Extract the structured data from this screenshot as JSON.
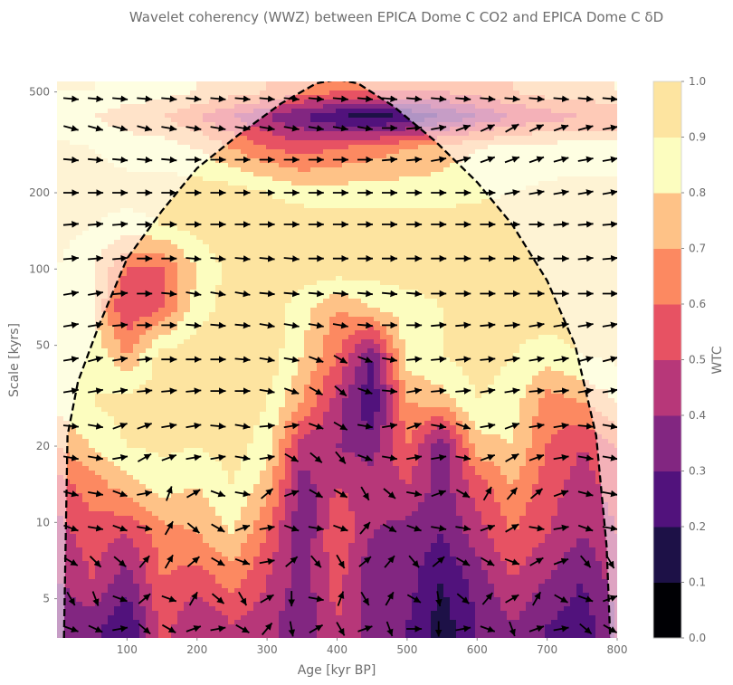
{
  "chart_data": {
    "type": "heatmap",
    "title": "Wavelet coherency (WWZ) between EPICA Dome C CO2 and EPICA Dome C δD",
    "xlabel": "Age [kyr BP]",
    "ylabel": "Scale [kyrs]",
    "xlim": [
      0,
      800
    ],
    "ylim": [
      3.5,
      550
    ],
    "y_scale": "log",
    "x_ticks": [
      100,
      200,
      300,
      400,
      500,
      600,
      700,
      800
    ],
    "y_ticks": [
      5,
      10,
      20,
      50,
      100,
      200,
      500
    ],
    "colorbar": {
      "label": "WTC",
      "colormap": "magma",
      "ticks": [
        "0.0",
        "0.1",
        "0.2",
        "0.3",
        "0.4",
        "0.5",
        "0.6",
        "0.7",
        "0.8",
        "0.9",
        "1.0"
      ],
      "levels": [
        0.0,
        0.1,
        0.2,
        0.3,
        0.4,
        0.5,
        0.6,
        0.7,
        0.8,
        0.9,
        1.0
      ],
      "colors": [
        "#000004",
        "#1d1147",
        "#51127c",
        "#822681",
        "#b73779",
        "#e75263",
        "#fc8961",
        "#fec287",
        "#fcfdbf",
        "#fde4a0"
      ]
    },
    "cone_of_influence": {
      "x": [
        10,
        15,
        30,
        60,
        100,
        150,
        200,
        260,
        320,
        370,
        400,
        430,
        480,
        540,
        600,
        650,
        700,
        740,
        770,
        785,
        790
      ],
      "y": [
        3.5,
        22,
        36,
        60,
        110,
        170,
        250,
        340,
        450,
        540,
        560,
        540,
        440,
        320,
        220,
        150,
        90,
        50,
        22,
        8,
        3.5
      ]
    },
    "coherency_grid": {
      "x": [
        0,
        50,
        100,
        150,
        200,
        250,
        300,
        350,
        400,
        450,
        500,
        550,
        600,
        650,
        700,
        750,
        800
      ],
      "scales": [
        4,
        6,
        9,
        14,
        20,
        30,
        45,
        70,
        100,
        150,
        200,
        300,
        400,
        500
      ],
      "z": [
        [
          0.3,
          0.35,
          0.2,
          0.55,
          0.4,
          0.5,
          0.45,
          0.3,
          0.5,
          0.35,
          0.3,
          0.15,
          0.3,
          0.4,
          0.3,
          0.25,
          0.4
        ],
        [
          0.4,
          0.5,
          0.35,
          0.6,
          0.55,
          0.65,
          0.5,
          0.35,
          0.55,
          0.3,
          0.35,
          0.2,
          0.35,
          0.5,
          0.4,
          0.3,
          0.45
        ],
        [
          0.45,
          0.55,
          0.5,
          0.65,
          0.7,
          0.8,
          0.6,
          0.3,
          0.6,
          0.4,
          0.35,
          0.3,
          0.45,
          0.6,
          0.5,
          0.4,
          0.5
        ],
        [
          0.55,
          0.65,
          0.75,
          0.85,
          0.8,
          0.9,
          0.75,
          0.35,
          0.5,
          0.45,
          0.5,
          0.35,
          0.55,
          0.7,
          0.55,
          0.45,
          0.55
        ],
        [
          0.7,
          0.8,
          0.9,
          0.92,
          0.9,
          0.95,
          0.85,
          0.45,
          0.4,
          0.35,
          0.6,
          0.3,
          0.75,
          0.8,
          0.6,
          0.5,
          0.6
        ],
        [
          0.85,
          0.9,
          0.95,
          0.95,
          0.95,
          0.97,
          0.9,
          0.7,
          0.45,
          0.2,
          0.7,
          0.75,
          0.9,
          0.85,
          0.65,
          0.7,
          0.8
        ],
        [
          0.9,
          0.9,
          0.7,
          0.95,
          0.97,
          0.97,
          0.97,
          0.8,
          0.6,
          0.3,
          0.85,
          0.9,
          0.95,
          0.9,
          0.85,
          0.9,
          0.92
        ],
        [
          0.9,
          0.8,
          0.5,
          0.6,
          0.85,
          0.95,
          0.95,
          0.85,
          0.7,
          0.8,
          0.85,
          0.9,
          0.95,
          0.95,
          0.95,
          0.95,
          0.95
        ],
        [
          0.9,
          0.8,
          0.6,
          0.6,
          0.8,
          0.95,
          0.96,
          0.96,
          0.96,
          0.95,
          0.95,
          0.95,
          0.95,
          0.95,
          0.95,
          0.95,
          0.95
        ],
        [
          0.95,
          0.9,
          0.85,
          0.9,
          0.95,
          0.96,
          0.97,
          0.97,
          0.97,
          0.96,
          0.96,
          0.96,
          0.95,
          0.95,
          0.95,
          0.95,
          0.95
        ],
        [
          0.95,
          0.95,
          0.95,
          0.95,
          0.95,
          0.95,
          0.9,
          0.85,
          0.85,
          0.85,
          0.85,
          0.85,
          0.88,
          0.9,
          0.92,
          0.93,
          0.93
        ],
        [
          0.92,
          0.9,
          0.85,
          0.85,
          0.8,
          0.7,
          0.6,
          0.55,
          0.6,
          0.65,
          0.7,
          0.75,
          0.8,
          0.85,
          0.85,
          0.85,
          0.85
        ],
        [
          0.85,
          0.8,
          0.75,
          0.7,
          0.6,
          0.5,
          0.4,
          0.3,
          0.2,
          0.15,
          0.2,
          0.3,
          0.4,
          0.5,
          0.55,
          0.6,
          0.6
        ],
        [
          0.9,
          0.9,
          0.85,
          0.85,
          0.8,
          0.75,
          0.7,
          0.65,
          0.6,
          0.6,
          0.6,
          0.6,
          0.65,
          0.7,
          0.75,
          0.75,
          0.8
        ]
      ]
    },
    "phase_arrows": {
      "x": [
        20,
        55,
        90,
        125,
        160,
        195,
        230,
        265,
        300,
        335,
        370,
        405,
        440,
        475,
        510,
        545,
        580,
        615,
        650,
        685,
        720,
        755,
        790
      ],
      "scales": [
        3.8,
        5,
        7,
        9.5,
        13,
        18,
        24,
        33,
        44,
        60,
        80,
        110,
        150,
        200,
        270,
        360,
        470
      ],
      "angle_deg": [
        [
          -20,
          -25,
          10,
          -40,
          -30,
          20,
          10,
          -30,
          50,
          -80,
          30,
          -60,
          20,
          -70,
          0,
          -90,
          10,
          -20,
          -70,
          20,
          10,
          -40,
          -30
        ],
        [
          -60,
          -70,
          -20,
          40,
          -20,
          60,
          -40,
          -60,
          30,
          -90,
          -10,
          70,
          -60,
          60,
          -30,
          -80,
          -40,
          50,
          30,
          60,
          -30,
          -20,
          20
        ],
        [
          -30,
          -45,
          -40,
          50,
          60,
          40,
          -30,
          -20,
          10,
          40,
          -50,
          -60,
          40,
          50,
          -50,
          40,
          -30,
          -30,
          -20,
          30,
          20,
          -50,
          -60
        ],
        [
          -20,
          -10,
          -20,
          -10,
          60,
          -40,
          -30,
          20,
          10,
          -20,
          -10,
          -20,
          50,
          -30,
          -20,
          -10,
          -10,
          20,
          30,
          -10,
          10,
          -20,
          -10
        ],
        [
          -15,
          -10,
          -20,
          10,
          70,
          30,
          -20,
          -10,
          40,
          20,
          -30,
          -30,
          -60,
          -40,
          -10,
          20,
          -30,
          60,
          50,
          40,
          20,
          -15,
          -10
        ],
        [
          -10,
          -10,
          10,
          30,
          20,
          10,
          10,
          -10,
          10,
          -30,
          -40,
          -50,
          -20,
          -10,
          10,
          10,
          -10,
          20,
          30,
          20,
          10,
          -10,
          -10
        ],
        [
          -5,
          -10,
          20,
          20,
          10,
          10,
          -5,
          -10,
          5,
          10,
          -20,
          -30,
          -10,
          10,
          20,
          -10,
          -20,
          10,
          20,
          10,
          10,
          -5,
          -10
        ],
        [
          10,
          10,
          10,
          5,
          5,
          5,
          0,
          0,
          -10,
          -20,
          -30,
          -40,
          -20,
          -5,
          10,
          5,
          5,
          10,
          10,
          5,
          5,
          10,
          10
        ],
        [
          10,
          15,
          10,
          5,
          0,
          0,
          0,
          -5,
          -10,
          -10,
          -20,
          -30,
          -20,
          -10,
          5,
          5,
          5,
          5,
          10,
          10,
          10,
          15,
          15
        ],
        [
          10,
          10,
          5,
          0,
          0,
          -5,
          -5,
          -5,
          -10,
          -10,
          -10,
          -10,
          -5,
          0,
          0,
          5,
          5,
          5,
          5,
          10,
          10,
          10,
          10
        ],
        [
          10,
          10,
          5,
          0,
          -5,
          -10,
          -10,
          -10,
          -5,
          -5,
          -5,
          -5,
          -5,
          -5,
          -5,
          0,
          0,
          0,
          0,
          0,
          0,
          0,
          0
        ],
        [
          5,
          5,
          5,
          0,
          0,
          -5,
          -5,
          -5,
          -5,
          -5,
          0,
          0,
          0,
          0,
          0,
          0,
          0,
          0,
          0,
          0,
          0,
          5,
          5
        ],
        [
          5,
          5,
          5,
          0,
          0,
          0,
          0,
          0,
          0,
          0,
          0,
          0,
          0,
          0,
          0,
          0,
          0,
          0,
          0,
          0,
          5,
          5,
          5
        ],
        [
          0,
          0,
          0,
          0,
          0,
          0,
          0,
          0,
          0,
          0,
          0,
          0,
          0,
          0,
          0,
          0,
          0,
          0,
          10,
          10,
          10,
          10,
          10
        ],
        [
          -5,
          -5,
          -5,
          -5,
          -5,
          0,
          0,
          0,
          0,
          0,
          0,
          0,
          0,
          5,
          5,
          10,
          15,
          20,
          20,
          20,
          15,
          10,
          10
        ],
        [
          -15,
          -15,
          -15,
          -15,
          -10,
          -10,
          -10,
          -10,
          -10,
          -10,
          -10,
          -10,
          -10,
          0,
          5,
          10,
          20,
          25,
          30,
          25,
          20,
          15,
          10
        ],
        [
          -5,
          -5,
          -5,
          -5,
          -5,
          -5,
          -5,
          -5,
          -5,
          -5,
          -5,
          -5,
          -5,
          -5,
          -5,
          -5,
          -5,
          -5,
          -5,
          -5,
          -5,
          -5,
          -5
        ]
      ]
    }
  }
}
